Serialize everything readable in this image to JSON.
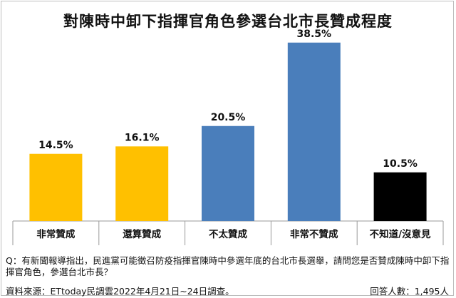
{
  "header": {
    "title": "對陳時中卸下指揮官角色參選台北市長贊成程度"
  },
  "chart_data": {
    "type": "bar",
    "title": "對陳時中卸下指揮官角色參選台北市長贊成程度",
    "categories": [
      "非常贊成",
      "還算贊成",
      "不太贊成",
      "非常不贊成",
      "不知道/沒意見"
    ],
    "values": [
      14.5,
      16.1,
      20.5,
      38.5,
      10.5
    ],
    "value_labels": [
      "14.5%",
      "16.1%",
      "20.5%",
      "38.5%",
      "10.5%"
    ],
    "colors": [
      "#ffc000",
      "#ffc000",
      "#4a7ebb",
      "#4a7ebb",
      "#000000"
    ],
    "ylim": [
      0,
      40
    ],
    "grid": false,
    "legend": "none"
  },
  "footer": {
    "question": "Q：有新聞報導指出，民進黨可能徵召防疫指揮官陳時中參選年底的台北市長選舉，請問您是否贊成陳時中卸下指揮官角色，參選台北市長？",
    "source": "資料來源：ETtoday民調雲2022年4月21日~24日調查。",
    "respondents": "回答人數：1,495人"
  }
}
